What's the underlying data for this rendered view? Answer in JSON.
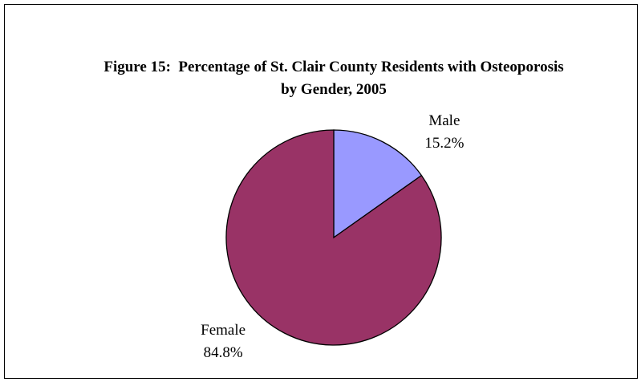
{
  "chart_data": {
    "type": "pie",
    "title": "Figure 15:  Percentage of St. Clair County Residents with Osteoporosis by Gender, 2005",
    "categories": [
      "Male",
      "Female"
    ],
    "values": [
      15.2,
      84.8
    ],
    "value_labels": [
      "15.2%",
      "84.8%"
    ],
    "colors": [
      "#9999ff",
      "#993366"
    ]
  }
}
